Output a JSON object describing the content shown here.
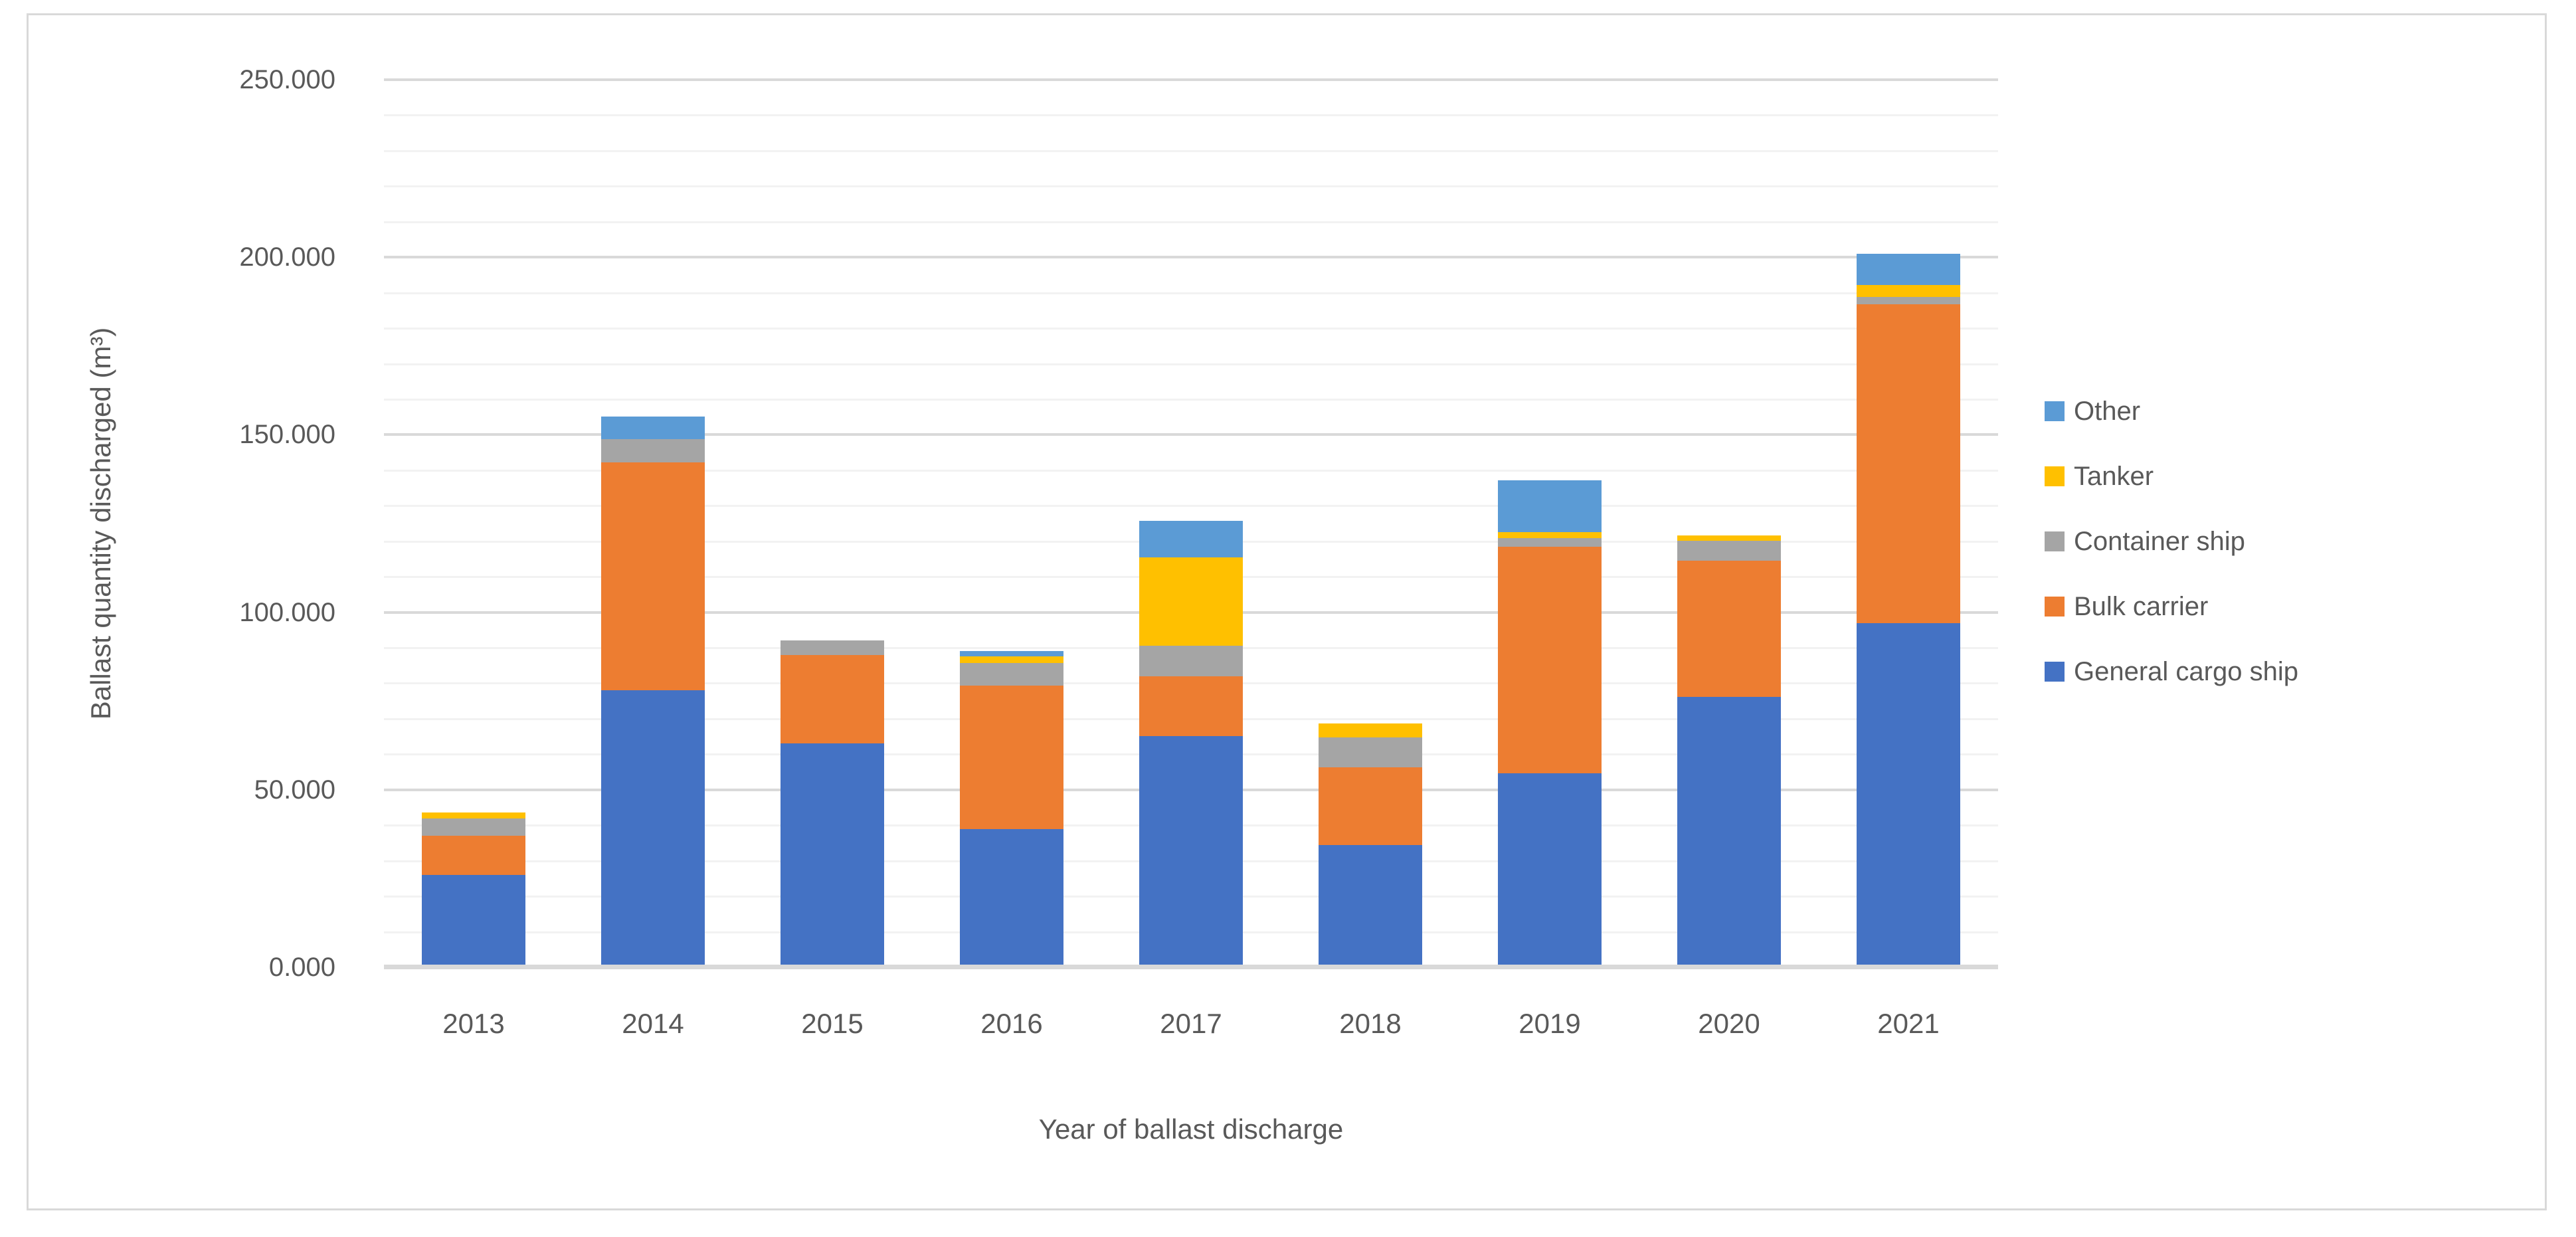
{
  "chart_data": {
    "type": "bar",
    "stacked": true,
    "title": "",
    "xlabel": "Year of ballast discharge",
    "ylabel": "Ballast quantity discharged (m³)",
    "categories": [
      "2013",
      "2014",
      "2015",
      "2016",
      "2017",
      "2018",
      "2019",
      "2020",
      "2021"
    ],
    "series": [
      {
        "name": "General cargo ship",
        "color": "#4472C4",
        "values": [
          26000,
          78000,
          63000,
          39000,
          65200,
          34500,
          54700,
          76200,
          97000
        ]
      },
      {
        "name": "Bulk carrier",
        "color": "#ED7D31",
        "values": [
          11000,
          64300,
          25000,
          40400,
          16800,
          21900,
          63700,
          38400,
          89700
        ]
      },
      {
        "name": "Container ship",
        "color": "#A5A5A5",
        "values": [
          4900,
          6400,
          4000,
          6400,
          8600,
          8400,
          2400,
          5600,
          2100
        ]
      },
      {
        "name": "Tanker",
        "color": "#FFC000",
        "values": [
          1700,
          0,
          0,
          1800,
          24800,
          3900,
          1700,
          1500,
          3300
        ]
      },
      {
        "name": "Other",
        "color": "#5B9BD5",
        "values": [
          0,
          6500,
          0,
          1500,
          10300,
          0,
          14600,
          0,
          8900
        ]
      }
    ],
    "legend_order_top_to_bottom": [
      "Other",
      "Tanker",
      "Container ship",
      "Bulk carrier",
      "General cargo ship"
    ],
    "legend_position": "right",
    "ylim": [
      0,
      250000
    ],
    "y_major_step": 50000,
    "y_minor_step": 10000,
    "grid": true,
    "ytick_labels": [
      {
        "value": 0,
        "label": "0.000"
      },
      {
        "value": 50000,
        "label": "50.000"
      },
      {
        "value": 100000,
        "label": "100.000"
      },
      {
        "value": 150000,
        "label": "150.000"
      },
      {
        "value": 200000,
        "label": "200.000"
      },
      {
        "value": 250000,
        "label": "250.000"
      }
    ]
  },
  "colors": {
    "axis_major_grid": "#D9D9D9",
    "axis_minor_grid": "#F2F2F2",
    "text": "#595959",
    "frame_border": "#D9D9D9",
    "background": "#FFFFFF"
  }
}
